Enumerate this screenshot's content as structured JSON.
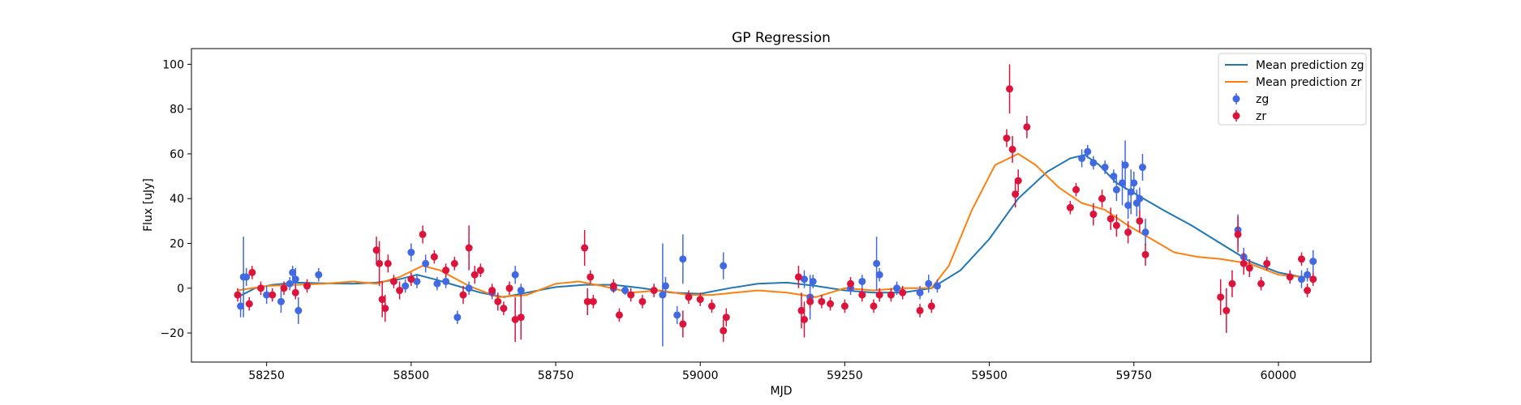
{
  "chart_data": {
    "type": "scatter",
    "title": "GP Regression",
    "xlabel": "MJD",
    "ylabel": "Flux [uJy]",
    "xlim": [
      58120,
      60160
    ],
    "ylim": [
      -33,
      107
    ],
    "xticks": [
      58250,
      58500,
      58750,
      59000,
      59250,
      59500,
      59750,
      60000
    ],
    "yticks": [
      -20,
      0,
      20,
      40,
      60,
      80,
      100
    ],
    "grid": false,
    "legend_position": "top-right",
    "legend": [
      "Mean prediction zg",
      "Mean prediction zr",
      "zg",
      "zr"
    ],
    "series": [
      {
        "name": "Mean prediction zg",
        "kind": "line",
        "color": "#1f77b4",
        "points": [
          [
            58200,
            -4
          ],
          [
            58230,
            0
          ],
          [
            58260,
            1.5
          ],
          [
            58300,
            2.5
          ],
          [
            58350,
            2.2
          ],
          [
            58400,
            2
          ],
          [
            58440,
            2.5
          ],
          [
            58480,
            4
          ],
          [
            58510,
            6
          ],
          [
            58540,
            4
          ],
          [
            58580,
            1
          ],
          [
            58620,
            -2
          ],
          [
            58660,
            -4
          ],
          [
            58700,
            -2
          ],
          [
            58750,
            0.5
          ],
          [
            58800,
            1.5
          ],
          [
            58850,
            1.5
          ],
          [
            58900,
            0
          ],
          [
            58950,
            -2
          ],
          [
            59000,
            -2.5
          ],
          [
            59050,
            0
          ],
          [
            59100,
            2
          ],
          [
            59150,
            2.5
          ],
          [
            59200,
            1
          ],
          [
            59250,
            -1
          ],
          [
            59300,
            -2
          ],
          [
            59350,
            -2
          ],
          [
            59400,
            0
          ],
          [
            59450,
            8
          ],
          [
            59500,
            22
          ],
          [
            59550,
            40
          ],
          [
            59600,
            52
          ],
          [
            59640,
            58
          ],
          [
            59665,
            59.5
          ],
          [
            59690,
            55
          ],
          [
            59720,
            47
          ],
          [
            59760,
            41
          ],
          [
            59800,
            35
          ],
          [
            59850,
            28
          ],
          [
            59900,
            20
          ],
          [
            59950,
            12
          ],
          [
            60000,
            7
          ],
          [
            60040,
            5
          ],
          [
            60060,
            5
          ]
        ]
      },
      {
        "name": "Mean prediction zr",
        "kind": "line",
        "color": "#ff7f0e",
        "points": [
          [
            58200,
            -1
          ],
          [
            58250,
            1
          ],
          [
            58300,
            1.5
          ],
          [
            58350,
            2
          ],
          [
            58400,
            3
          ],
          [
            58440,
            2
          ],
          [
            58480,
            5
          ],
          [
            58520,
            10
          ],
          [
            58550,
            8
          ],
          [
            58600,
            1
          ],
          [
            58650,
            -4
          ],
          [
            58700,
            -3
          ],
          [
            58750,
            2
          ],
          [
            58790,
            3
          ],
          [
            58830,
            1
          ],
          [
            58880,
            -2
          ],
          [
            58930,
            -1
          ],
          [
            58980,
            -3
          ],
          [
            59020,
            -3
          ],
          [
            59060,
            -2
          ],
          [
            59100,
            -1
          ],
          [
            59150,
            -2
          ],
          [
            59200,
            -4
          ],
          [
            59250,
            0
          ],
          [
            59300,
            -1
          ],
          [
            59350,
            0
          ],
          [
            59400,
            0
          ],
          [
            59430,
            10
          ],
          [
            59470,
            35
          ],
          [
            59510,
            55
          ],
          [
            59550,
            60
          ],
          [
            59580,
            55
          ],
          [
            59620,
            45
          ],
          [
            59660,
            38
          ],
          [
            59700,
            35
          ],
          [
            59740,
            28
          ],
          [
            59780,
            22
          ],
          [
            59820,
            16
          ],
          [
            59860,
            14
          ],
          [
            59900,
            13
          ],
          [
            59950,
            11
          ],
          [
            60000,
            6
          ],
          [
            60040,
            5
          ],
          [
            60060,
            5
          ]
        ]
      },
      {
        "name": "zg",
        "kind": "errorbar",
        "color": "#4169e1",
        "points": [
          [
            58205,
            -8,
            5
          ],
          [
            58210,
            5,
            18
          ],
          [
            58215,
            5,
            4
          ],
          [
            58250,
            -3,
            4
          ],
          [
            58275,
            -6,
            5
          ],
          [
            58290,
            2,
            3
          ],
          [
            58295,
            7,
            3
          ],
          [
            58300,
            4,
            5
          ],
          [
            58305,
            -10,
            6
          ],
          [
            58340,
            6,
            3
          ],
          [
            58490,
            1,
            3
          ],
          [
            58500,
            16,
            4
          ],
          [
            58510,
            3,
            3
          ],
          [
            58525,
            11,
            4
          ],
          [
            58545,
            2,
            3
          ],
          [
            58560,
            3,
            3
          ],
          [
            58580,
            -13,
            3
          ],
          [
            58600,
            0,
            3
          ],
          [
            58640,
            -2,
            3
          ],
          [
            58680,
            6,
            4
          ],
          [
            58690,
            -1,
            3
          ],
          [
            58850,
            0,
            2
          ],
          [
            58870,
            -1,
            2
          ],
          [
            58935,
            -3,
            23
          ],
          [
            58940,
            1,
            4
          ],
          [
            58960,
            -12,
            4
          ],
          [
            58970,
            13,
            11
          ],
          [
            59040,
            10,
            6
          ],
          [
            59180,
            4,
            4
          ],
          [
            59190,
            -4,
            10
          ],
          [
            59195,
            3,
            3
          ],
          [
            59260,
            0,
            3
          ],
          [
            59280,
            3,
            3
          ],
          [
            59305,
            11,
            12
          ],
          [
            59310,
            6,
            3
          ],
          [
            59340,
            0,
            3
          ],
          [
            59380,
            -2,
            3
          ],
          [
            59395,
            2,
            4
          ],
          [
            59410,
            1,
            3
          ],
          [
            59660,
            58,
            4
          ],
          [
            59670,
            61,
            3
          ],
          [
            59680,
            56,
            3
          ],
          [
            59700,
            54,
            3
          ],
          [
            59715,
            50,
            3
          ],
          [
            59720,
            44,
            5
          ],
          [
            59730,
            47,
            10
          ],
          [
            59735,
            55,
            11
          ],
          [
            59740,
            37,
            6
          ],
          [
            59745,
            43,
            10
          ],
          [
            59750,
            47,
            5
          ],
          [
            59755,
            38,
            6
          ],
          [
            59760,
            40,
            5
          ],
          [
            59765,
            54,
            6
          ],
          [
            59770,
            25,
            6
          ],
          [
            59930,
            26,
            7
          ],
          [
            59940,
            14,
            4
          ],
          [
            60040,
            4,
            4
          ],
          [
            60050,
            6,
            3
          ],
          [
            60060,
            12,
            5
          ]
        ]
      },
      {
        "name": "zr",
        "kind": "errorbar",
        "color": "#dc143c",
        "points": [
          [
            58200,
            -3,
            3
          ],
          [
            58220,
            -7,
            3
          ],
          [
            58225,
            7,
            3
          ],
          [
            58240,
            0,
            3
          ],
          [
            58260,
            -3,
            3
          ],
          [
            58280,
            0,
            3
          ],
          [
            58300,
            -2,
            3
          ],
          [
            58320,
            1,
            3
          ],
          [
            58440,
            17,
            6
          ],
          [
            58445,
            11,
            10
          ],
          [
            58450,
            -5,
            8
          ],
          [
            58455,
            -9,
            6
          ],
          [
            58460,
            11,
            4
          ],
          [
            58470,
            3,
            3
          ],
          [
            58480,
            -1,
            4
          ],
          [
            58500,
            4,
            3
          ],
          [
            58520,
            24,
            4
          ],
          [
            58540,
            14,
            3
          ],
          [
            58560,
            8,
            3
          ],
          [
            58575,
            11,
            3
          ],
          [
            58590,
            -3,
            4
          ],
          [
            58600,
            18,
            10
          ],
          [
            58610,
            6,
            4
          ],
          [
            58620,
            8,
            3
          ],
          [
            58640,
            -1,
            3
          ],
          [
            58650,
            -6,
            4
          ],
          [
            58660,
            -9,
            3
          ],
          [
            58670,
            0,
            3
          ],
          [
            58680,
            -14,
            10
          ],
          [
            58690,
            -13,
            10
          ],
          [
            58800,
            18,
            8
          ],
          [
            58805,
            -6,
            6
          ],
          [
            58810,
            5,
            3
          ],
          [
            58815,
            -6,
            3
          ],
          [
            58850,
            1,
            3
          ],
          [
            58860,
            -12,
            3
          ],
          [
            58880,
            -3,
            3
          ],
          [
            58900,
            -6,
            3
          ],
          [
            58920,
            -1,
            3
          ],
          [
            58970,
            -16,
            6
          ],
          [
            58980,
            -4,
            3
          ],
          [
            59000,
            -5,
            3
          ],
          [
            59020,
            -8,
            3
          ],
          [
            59040,
            -19,
            5
          ],
          [
            59045,
            -13,
            4
          ],
          [
            59170,
            5,
            5
          ],
          [
            59175,
            -10,
            8
          ],
          [
            59180,
            -14,
            8
          ],
          [
            59190,
            -6,
            3
          ],
          [
            59210,
            -6,
            3
          ],
          [
            59225,
            -7,
            3
          ],
          [
            59250,
            -8,
            3
          ],
          [
            59260,
            2,
            3
          ],
          [
            59280,
            -3,
            3
          ],
          [
            59300,
            -8,
            3
          ],
          [
            59310,
            -3,
            3
          ],
          [
            59330,
            -3,
            3
          ],
          [
            59350,
            -2,
            3
          ],
          [
            59380,
            -10,
            3
          ],
          [
            59400,
            -8,
            3
          ],
          [
            59530,
            67,
            4
          ],
          [
            59535,
            89,
            11
          ],
          [
            59540,
            62,
            6
          ],
          [
            59545,
            42,
            6
          ],
          [
            59550,
            48,
            5
          ],
          [
            59565,
            72,
            5
          ],
          [
            59640,
            36,
            3
          ],
          [
            59650,
            44,
            3
          ],
          [
            59680,
            33,
            5
          ],
          [
            59695,
            40,
            4
          ],
          [
            59710,
            31,
            5
          ],
          [
            59720,
            28,
            5
          ],
          [
            59740,
            25,
            5
          ],
          [
            59760,
            30,
            5
          ],
          [
            59770,
            15,
            5
          ],
          [
            59900,
            -4,
            8
          ],
          [
            59910,
            -10,
            10
          ],
          [
            59920,
            2,
            6
          ],
          [
            59930,
            24,
            8
          ],
          [
            59940,
            11,
            5
          ],
          [
            59950,
            9,
            4
          ],
          [
            59970,
            2,
            3
          ],
          [
            59980,
            11,
            3
          ],
          [
            60020,
            5,
            3
          ],
          [
            60040,
            13,
            3
          ],
          [
            60050,
            -1,
            3
          ],
          [
            60060,
            4,
            3
          ]
        ]
      }
    ]
  }
}
